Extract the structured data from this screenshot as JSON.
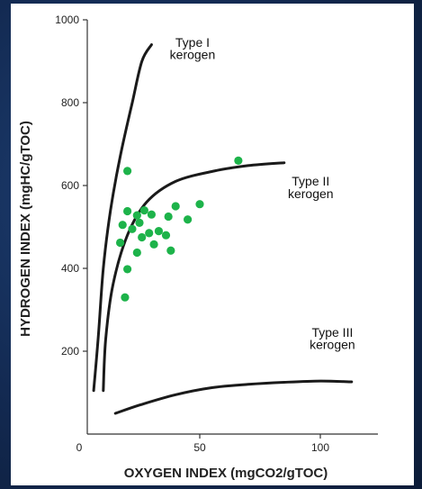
{
  "chart_data": {
    "type": "scatter",
    "xlabel": "OXYGEN INDEX (mgCO2/gTOC)",
    "ylabel": "HYDROGEN INDEX (mgHC/gTOC)",
    "xlim": [
      0,
      120
    ],
    "ylim": [
      0,
      1000
    ],
    "x_ticks": [
      {
        "value": 0,
        "label": "0"
      },
      {
        "value": 50,
        "label": "50"
      },
      {
        "value": 100,
        "label": "100"
      }
    ],
    "y_ticks": [
      {
        "value": 200,
        "label": "200"
      },
      {
        "value": 400,
        "label": "400"
      },
      {
        "value": 600,
        "label": "600"
      },
      {
        "value": 800,
        "label": "800"
      },
      {
        "value": 1000,
        "label": "1000"
      }
    ],
    "grid": false,
    "curves": [
      {
        "line1": "Type I",
        "line2": "kerogen",
        "points": [
          [
            6,
            105
          ],
          [
            8,
            240
          ],
          [
            10,
            400
          ],
          [
            13,
            540
          ],
          [
            17,
            670
          ],
          [
            22,
            800
          ],
          [
            26,
            900
          ],
          [
            30,
            940
          ]
        ],
        "label_at": [
          47,
          935,
          905
        ]
      },
      {
        "line1": "Type II",
        "line2": "kerogen",
        "points": [
          [
            10,
            105
          ],
          [
            11,
            230
          ],
          [
            14,
            360
          ],
          [
            20,
            480
          ],
          [
            28,
            560
          ],
          [
            40,
            610
          ],
          [
            56,
            635
          ],
          [
            70,
            648
          ],
          [
            85,
            655
          ]
        ],
        "label_at": [
          96,
          600,
          570
        ]
      },
      {
        "line1": "Type III",
        "line2": "kerogen",
        "points": [
          [
            15,
            50
          ],
          [
            25,
            70
          ],
          [
            40,
            95
          ],
          [
            55,
            112
          ],
          [
            70,
            120
          ],
          [
            85,
            125
          ],
          [
            100,
            128
          ],
          [
            113,
            126
          ]
        ],
        "label_at": [
          105,
          235,
          205
        ]
      }
    ],
    "points": [
      [
        20,
        635
      ],
      [
        66,
        660
      ],
      [
        20,
        538
      ],
      [
        24,
        528
      ],
      [
        27,
        540
      ],
      [
        30,
        530
      ],
      [
        18,
        505
      ],
      [
        22,
        495
      ],
      [
        25,
        510
      ],
      [
        29,
        485
      ],
      [
        33,
        490
      ],
      [
        37,
        525
      ],
      [
        40,
        550
      ],
      [
        45,
        518
      ],
      [
        50,
        555
      ],
      [
        17,
        462
      ],
      [
        26,
        475
      ],
      [
        31,
        458
      ],
      [
        36,
        480
      ],
      [
        24,
        438
      ],
      [
        38,
        443
      ],
      [
        20,
        398
      ],
      [
        19,
        330
      ]
    ],
    "point_color": "#1db34a",
    "line_color": "#1a1a1a"
  }
}
